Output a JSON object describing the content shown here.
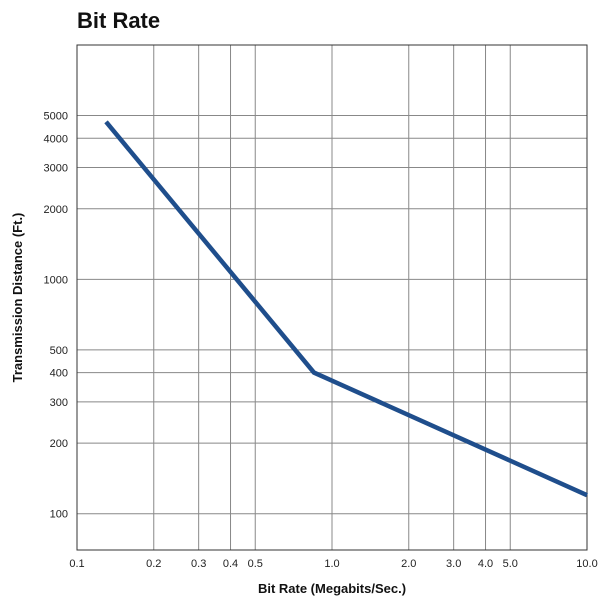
{
  "chart_data": {
    "type": "line",
    "title": "Bit Rate",
    "xlabel": "Bit Rate (Megabits/Sec.)",
    "ylabel": "Transmission Distance (Ft.)",
    "xscale": "log",
    "yscale": "log",
    "xlim": [
      0.1,
      10.0
    ],
    "ylim": [
      70,
      10000
    ],
    "grid": true,
    "x_ticks": [
      {
        "value": 0.1,
        "label": "0.1"
      },
      {
        "value": 0.2,
        "label": "0.2"
      },
      {
        "value": 0.3,
        "label": "0.3"
      },
      {
        "value": 0.4,
        "label": "0.4"
      },
      {
        "value": 0.5,
        "label": "0.5"
      },
      {
        "value": 1.0,
        "label": "1.0"
      },
      {
        "value": 2.0,
        "label": "2.0"
      },
      {
        "value": 3.0,
        "label": "3.0"
      },
      {
        "value": 4.0,
        "label": "4.0"
      },
      {
        "value": 5.0,
        "label": "5.0"
      },
      {
        "value": 10.0,
        "label": "10.0"
      }
    ],
    "y_ticks": [
      {
        "value": 100,
        "label": "100"
      },
      {
        "value": 200,
        "label": "200"
      },
      {
        "value": 300,
        "label": "300"
      },
      {
        "value": 400,
        "label": "400"
      },
      {
        "value": 500,
        "label": "500"
      },
      {
        "value": 1000,
        "label": "1000"
      },
      {
        "value": 2000,
        "label": "2000"
      },
      {
        "value": 3000,
        "label": "3000"
      },
      {
        "value": 4000,
        "label": "4000"
      },
      {
        "value": 5000,
        "label": "5000"
      }
    ],
    "series": [
      {
        "color": "#1f4e8c",
        "points": [
          {
            "x": 0.13,
            "y": 4700
          },
          {
            "x": 0.85,
            "y": 400
          },
          {
            "x": 10.0,
            "y": 120
          }
        ]
      }
    ]
  }
}
